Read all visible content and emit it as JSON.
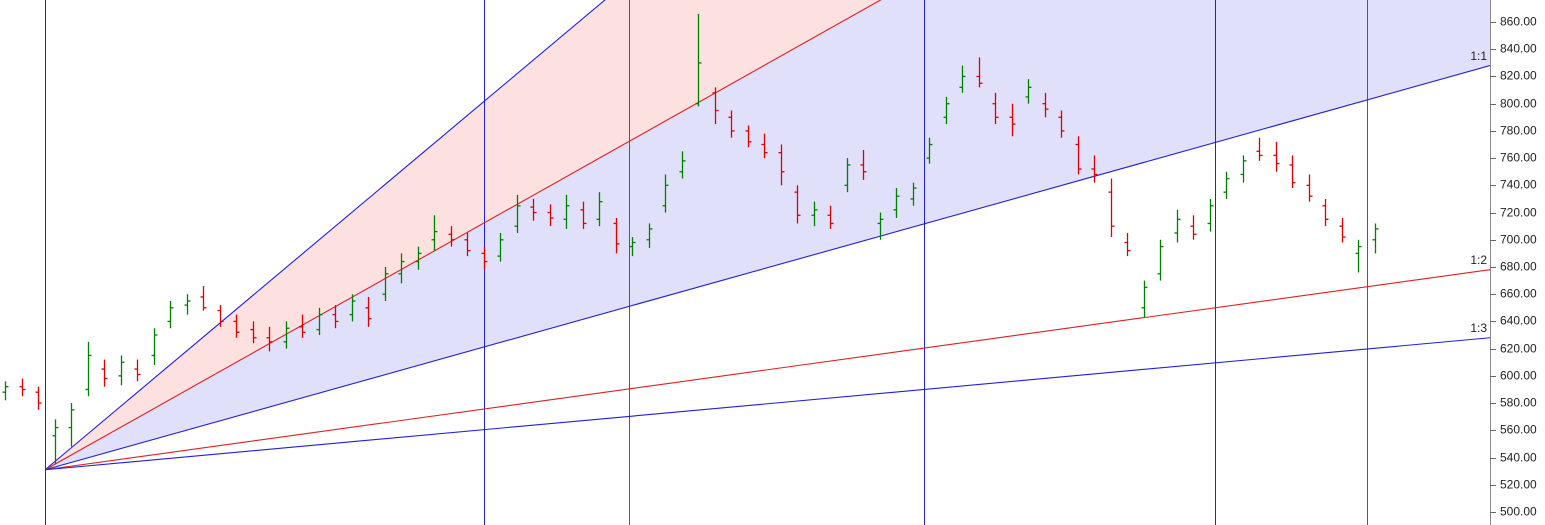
{
  "chart_data": {
    "type": "ohlc",
    "xlim": [
      0,
      271
    ],
    "ylim": [
      490.4,
      876.2
    ],
    "yticks": [
      {
        "value": 500,
        "label": "500.00"
      },
      {
        "value": 520,
        "label": "520.00"
      },
      {
        "value": 540,
        "label": "540.00"
      },
      {
        "value": 560,
        "label": "560.00"
      },
      {
        "value": 580,
        "label": "580.00"
      },
      {
        "value": 600,
        "label": "600.00"
      },
      {
        "value": 620,
        "label": "620.00"
      },
      {
        "value": 640,
        "label": "640.00"
      },
      {
        "value": 660,
        "label": "660.00"
      },
      {
        "value": 680,
        "label": "680.00"
      },
      {
        "value": 700,
        "label": "700.00"
      },
      {
        "value": 720,
        "label": "720.00"
      },
      {
        "value": 740,
        "label": "740.00"
      },
      {
        "value": 760,
        "label": "760.00"
      },
      {
        "value": 780,
        "label": "780.00"
      },
      {
        "value": 800,
        "label": "800.00"
      },
      {
        "value": 820,
        "label": "820.00"
      },
      {
        "value": 840,
        "label": "840.00"
      },
      {
        "value": 860,
        "label": "860.00"
      }
    ],
    "up_color": "#008000",
    "down_color": "#e00000",
    "x": [
      1,
      4,
      7,
      10,
      13,
      16,
      19,
      22,
      25,
      28,
      31,
      34,
      37,
      40,
      43,
      46,
      49,
      52,
      55,
      58,
      61,
      64,
      67,
      70,
      73,
      76,
      79,
      82,
      85,
      88,
      91,
      94,
      97,
      100,
      103,
      106,
      109,
      112,
      115,
      118,
      121,
      124,
      127,
      130,
      133,
      136,
      139,
      142,
      145,
      148,
      151,
      154,
      157,
      160,
      163,
      166,
      169,
      172,
      175,
      178,
      181,
      184,
      187,
      190,
      193,
      196,
      199,
      202,
      205,
      208,
      211,
      214,
      217,
      220,
      223,
      226,
      229,
      232,
      235,
      238,
      241,
      244,
      247,
      250
    ],
    "open": [
      588,
      592,
      588,
      556,
      562,
      590,
      605,
      600,
      605,
      615,
      640,
      652,
      658,
      648,
      640,
      634,
      628,
      625,
      636,
      634,
      645,
      645,
      650,
      660,
      675,
      684,
      700,
      704,
      700,
      690,
      688,
      710,
      724,
      720,
      715,
      722,
      715,
      712,
      695,
      700,
      725,
      750,
      800,
      808,
      790,
      780,
      770,
      764,
      735,
      718,
      718,
      740,
      755,
      712,
      722,
      730,
      760,
      790,
      812,
      820,
      800,
      790,
      805,
      800,
      790,
      770,
      752,
      735,
      698,
      650,
      675,
      705,
      710,
      712,
      735,
      748,
      765,
      762,
      755,
      740,
      725,
      710,
      690,
      700
    ],
    "high": [
      596,
      598,
      592,
      568,
      580,
      625,
      612,
      615,
      612,
      635,
      655,
      660,
      666,
      652,
      645,
      640,
      636,
      640,
      645,
      650,
      652,
      660,
      658,
      680,
      690,
      695,
      718,
      710,
      705,
      695,
      705,
      733,
      730,
      726,
      733,
      728,
      735,
      716,
      702,
      712,
      748,
      765,
      866,
      812,
      795,
      784,
      778,
      770,
      740,
      728,
      725,
      760,
      766,
      720,
      738,
      742,
      775,
      805,
      828,
      834,
      808,
      800,
      818,
      808,
      795,
      776,
      762,
      745,
      705,
      670,
      700,
      722,
      718,
      730,
      750,
      762,
      775,
      772,
      762,
      748,
      730,
      716,
      700,
      712
    ],
    "low": [
      582,
      585,
      575,
      535,
      548,
      585,
      592,
      593,
      596,
      608,
      635,
      645,
      648,
      636,
      628,
      624,
      618,
      620,
      628,
      630,
      635,
      640,
      636,
      655,
      668,
      678,
      692,
      695,
      688,
      678,
      684,
      705,
      714,
      710,
      708,
      708,
      710,
      690,
      688,
      694,
      720,
      745,
      798,
      785,
      775,
      768,
      760,
      740,
      712,
      710,
      708,
      735,
      744,
      700,
      716,
      725,
      756,
      785,
      808,
      812,
      785,
      776,
      800,
      790,
      775,
      748,
      742,
      702,
      688,
      643,
      670,
      698,
      700,
      706,
      730,
      742,
      758,
      750,
      738,
      728,
      710,
      698,
      676,
      690
    ],
    "close": [
      592,
      590,
      580,
      562,
      575,
      615,
      598,
      610,
      601,
      630,
      650,
      655,
      650,
      640,
      632,
      628,
      625,
      635,
      632,
      645,
      640,
      655,
      642,
      675,
      684,
      690,
      706,
      700,
      692,
      684,
      700,
      725,
      720,
      716,
      725,
      712,
      728,
      697,
      698,
      708,
      740,
      758,
      830,
      795,
      780,
      772,
      764,
      750,
      718,
      722,
      712,
      755,
      750,
      715,
      732,
      738,
      770,
      800,
      820,
      815,
      790,
      785,
      812,
      796,
      780,
      752,
      748,
      710,
      692,
      665,
      695,
      715,
      704,
      725,
      745,
      758,
      762,
      756,
      742,
      732,
      715,
      702,
      695,
      708
    ],
    "vlines": [
      {
        "x": 8.2,
        "color": "#1f1fe0"
      },
      {
        "x": 88,
        "color": "#1f1fe0"
      },
      {
        "x": 114.4,
        "color": "#e01f1f"
      },
      {
        "x": 168,
        "color": "#1f1fe0"
      },
      {
        "x": 220.9,
        "color": "#1f1fe0"
      },
      {
        "x": 248.7,
        "color": "#e01f1f"
      }
    ],
    "fan": {
      "origin_x": 8.2,
      "origin_price": 531,
      "end_x": 271,
      "lines": [
        {
          "end": 1422,
          "color": "#1f1fe0",
          "fill": "#fde0e0"
        },
        {
          "end": 1128,
          "color": "#e01f1f",
          "fill": "#e0e0fa"
        },
        {
          "end": 828,
          "color": "#1f1fe0",
          "label": "1:1"
        },
        {
          "end": 678,
          "color": "#e01f1f",
          "label": "1:2"
        },
        {
          "end": 628,
          "color": "#1f1fe0",
          "label": "1:3"
        }
      ]
    }
  }
}
